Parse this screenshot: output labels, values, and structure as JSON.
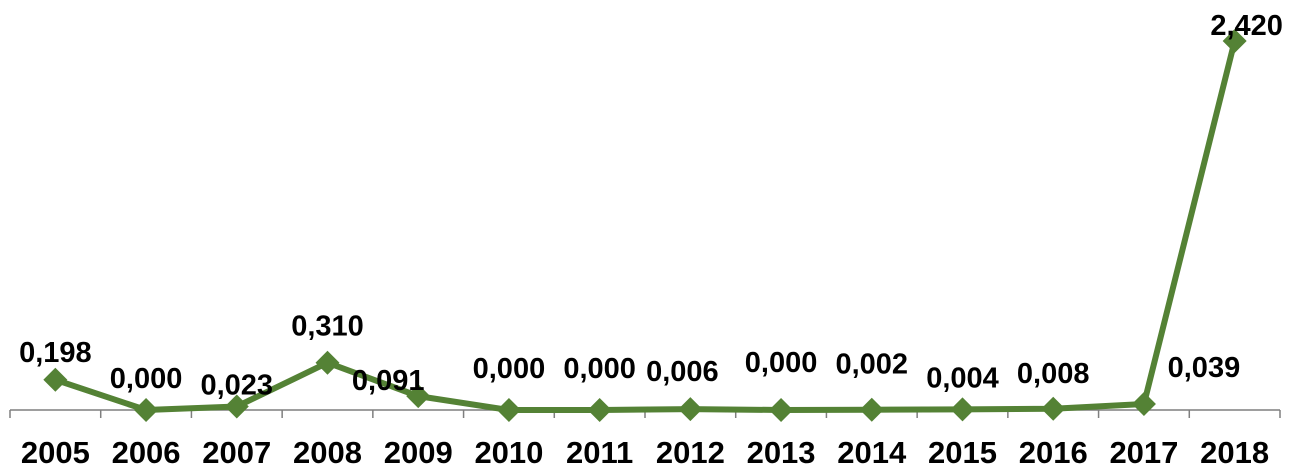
{
  "chart_data": {
    "type": "line",
    "categories": [
      "2005",
      "2006",
      "2007",
      "2008",
      "2009",
      "2010",
      "2011",
      "2012",
      "2013",
      "2014",
      "2015",
      "2016",
      "2017",
      "2018"
    ],
    "series": [
      {
        "values": [
          0.198,
          0.0,
          0.023,
          0.31,
          0.091,
          0.0,
          0.0,
          0.006,
          0.0,
          0.002,
          0.004,
          0.008,
          0.039,
          2.42
        ],
        "data_labels": [
          "0,198",
          "0,000",
          "0,023",
          "0,310",
          "0,091",
          "0,000",
          "0,000",
          "0,006",
          "0,000",
          "0,002",
          "0,004",
          "0,008",
          "0,039",
          "2,420"
        ],
        "color": "#548235"
      }
    ],
    "ylim": [
      0,
      2.5
    ],
    "grid": false,
    "legend": "none",
    "marker": "diamond"
  }
}
